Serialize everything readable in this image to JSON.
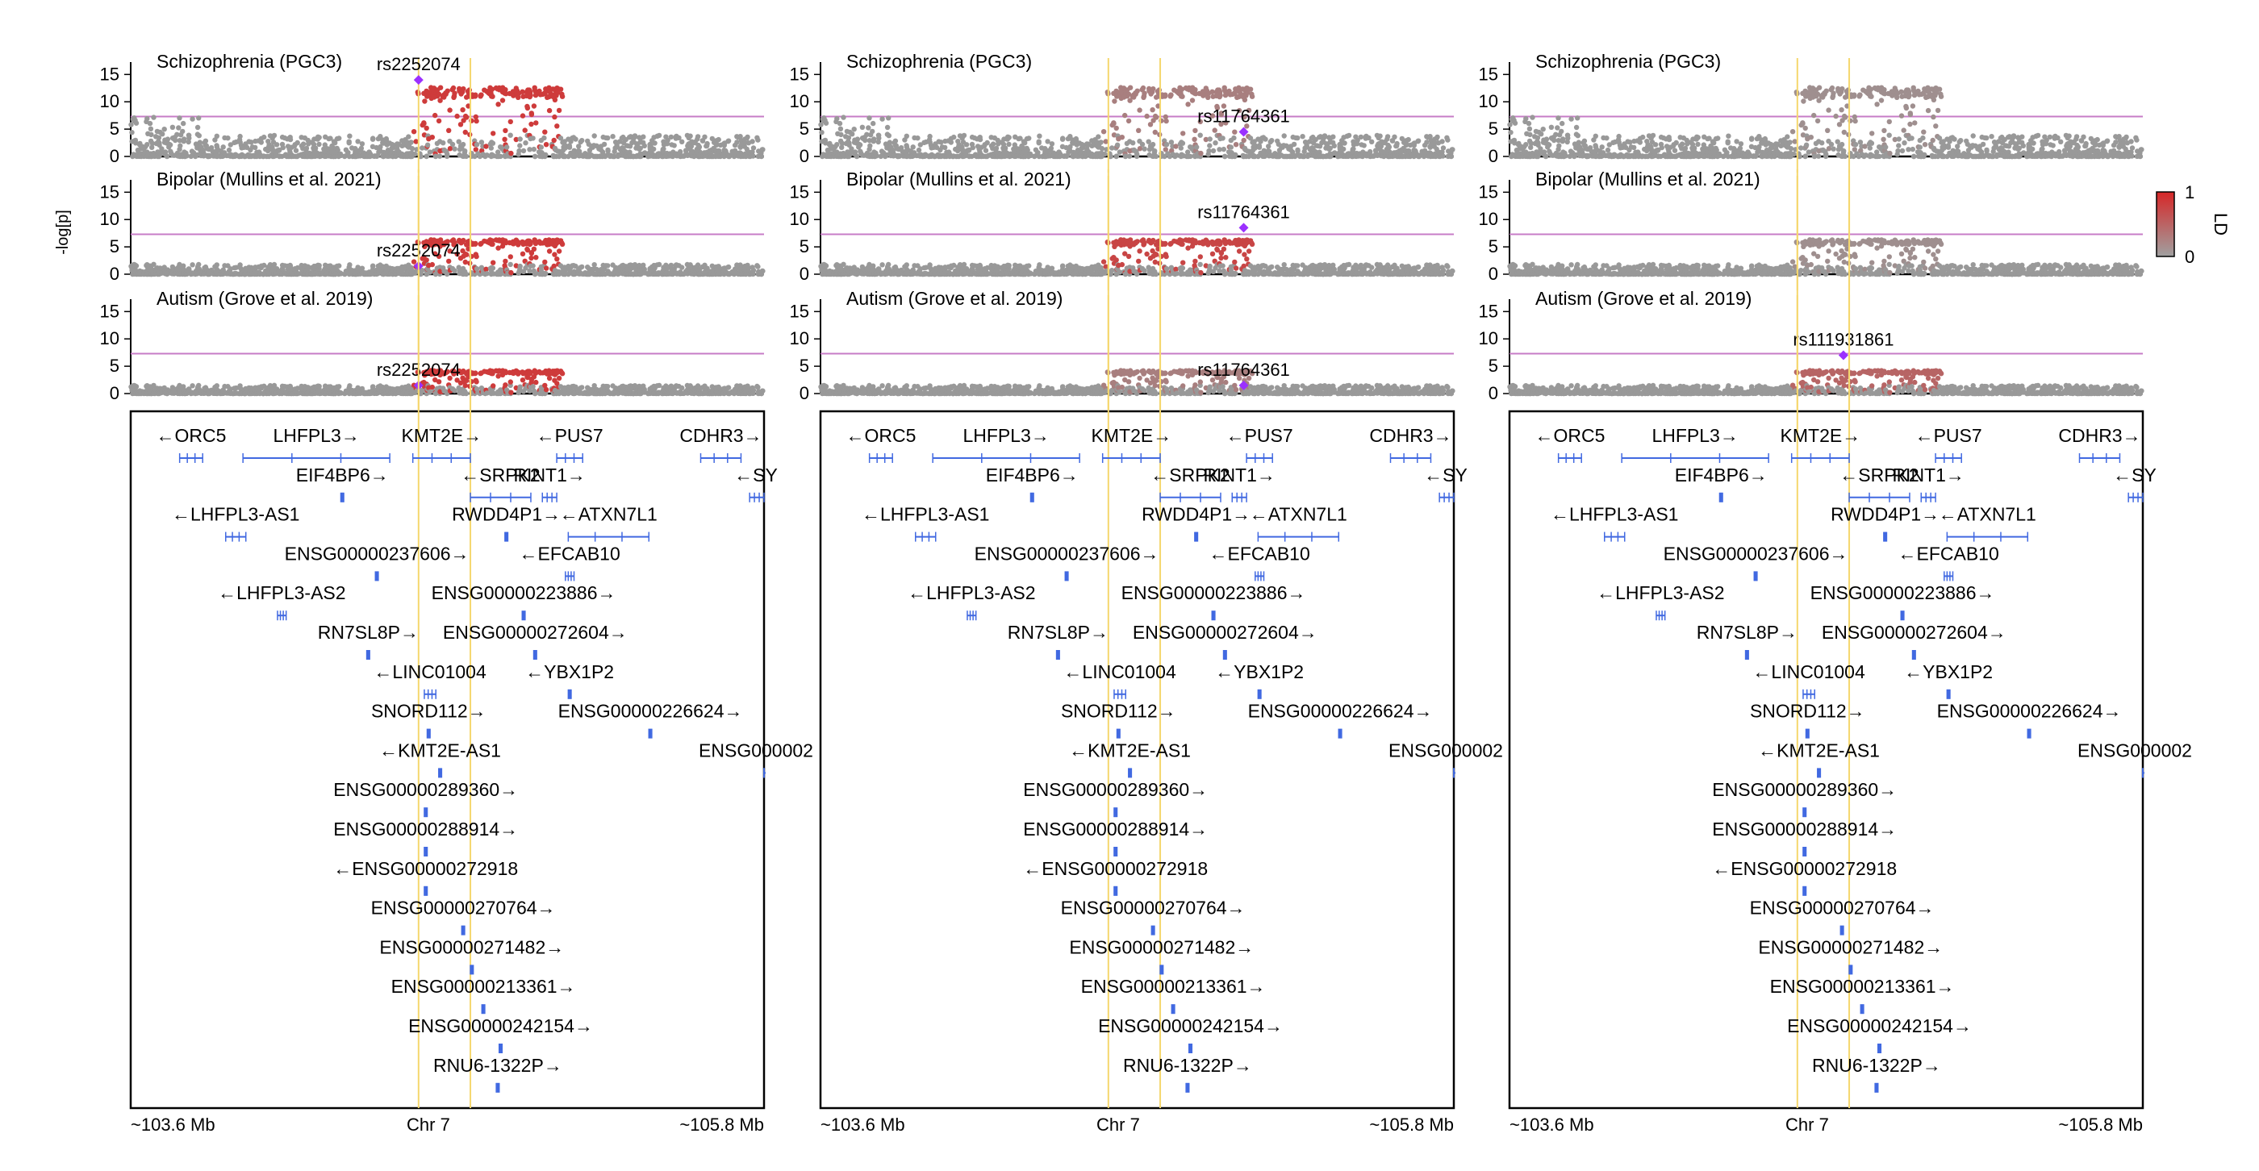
{
  "chart_data": {
    "type": "scatter",
    "title": "",
    "ylabel": "-log[p]",
    "ylim": [
      0,
      18
    ],
    "yticks": [
      0,
      5,
      10,
      15
    ],
    "significance_threshold": 7.3,
    "chromosome_label": "Chr 7",
    "x_start_label": "~103.6 Mb",
    "x_end_label": "~105.8 Mb",
    "xlim_mb": [
      103.6,
      105.8
    ],
    "highlight_region_mb": [
      104.6,
      104.78
    ],
    "colorbar": {
      "label": "LD",
      "min_label": "0",
      "max_label": "1",
      "min_color": "#a0a0a0",
      "max_color": "#d62728"
    },
    "colors": {
      "threshold": "#c77cc7",
      "highlight": "#f5d76e",
      "lead_snp": "#9b30ff",
      "gene": "#4169e1",
      "ld_low": "#999999",
      "ld_high": "#d43030"
    },
    "traits": [
      {
        "name": "Schizophrenia (PGC3)",
        "peak": 12,
        "bg_max": 6.5,
        "lead_mb": 104.6
      },
      {
        "name": "Bipolar (Mullins et al. 2021)",
        "peak": 6,
        "bg_max": 3,
        "lead_mb": 104.6
      },
      {
        "name": "Autism (Grove et al. 2019)",
        "peak": 4,
        "bg_max": 2.5,
        "lead_mb": 104.6
      }
    ],
    "columns": [
      {
        "lead_snp": "rs2252074",
        "lead_mb": 104.6,
        "lead_values": [
          14,
          1.5,
          1.5
        ],
        "label_row": [
          0,
          1,
          2
        ]
      },
      {
        "lead_snp": "rs11764361",
        "lead_mb": 105.07,
        "lead_values": [
          4.5,
          8.5,
          1.5
        ],
        "label_row": [
          0,
          1,
          2
        ]
      },
      {
        "lead_snp": "rs111931861",
        "lead_mb": 104.76,
        "lead_values": [
          null,
          null,
          7
        ],
        "label_row": [
          2
        ]
      }
    ],
    "genes": [
      {
        "name": "←ORC5",
        "row": 0,
        "start": 103.77,
        "end": 103.85
      },
      {
        "name": "LHFPL3→",
        "row": 0,
        "start": 103.99,
        "end": 104.5
      },
      {
        "name": "KMT2E→",
        "row": 0,
        "start": 104.58,
        "end": 104.78
      },
      {
        "name": "←PUS7",
        "row": 0,
        "start": 105.08,
        "end": 105.17
      },
      {
        "name": "CDHR3→",
        "row": 0,
        "start": 105.58,
        "end": 105.72
      },
      {
        "name": "EIF4BP6→",
        "row": 1,
        "start": 104.33,
        "end": 104.34
      },
      {
        "name": "←SRPK2",
        "row": 1,
        "start": 104.78,
        "end": 104.99
      },
      {
        "name": "RINT1→",
        "row": 1,
        "start": 105.03,
        "end": 105.08
      },
      {
        "name": "←SY",
        "row": 1,
        "start": 105.75,
        "end": 105.82
      },
      {
        "name": "←LHFPL3-AS1",
        "row": 2,
        "start": 103.93,
        "end": 104.0
      },
      {
        "name": "RWDD4P1→",
        "row": 2,
        "start": 104.9,
        "end": 104.91
      },
      {
        "name": "←ATXN7L1",
        "row": 2,
        "start": 105.12,
        "end": 105.4
      },
      {
        "name": "ENSG00000237606→",
        "row": 3,
        "start": 104.45,
        "end": 104.46
      },
      {
        "name": "←EFCAB10",
        "row": 3,
        "start": 105.11,
        "end": 105.14
      },
      {
        "name": "←LHFPL3-AS2",
        "row": 4,
        "start": 104.11,
        "end": 104.14
      },
      {
        "name": "ENSG00000223886→",
        "row": 4,
        "start": 104.96,
        "end": 104.97
      },
      {
        "name": "RN7SL8P→",
        "row": 5,
        "start": 104.42,
        "end": 104.43
      },
      {
        "name": "ENSG00000272604→",
        "row": 5,
        "start": 105.0,
        "end": 105.01
      },
      {
        "name": "←LINC01004",
        "row": 6,
        "start": 104.62,
        "end": 104.66
      },
      {
        "name": "←YBX1P2",
        "row": 6,
        "start": 105.12,
        "end": 105.13
      },
      {
        "name": "SNORD112→",
        "row": 7,
        "start": 104.63,
        "end": 104.64
      },
      {
        "name": "ENSG00000226624→",
        "row": 7,
        "start": 105.4,
        "end": 105.41
      },
      {
        "name": "←KMT2E-AS1",
        "row": 8,
        "start": 104.67,
        "end": 104.68
      },
      {
        "name": "ENSG000002",
        "row": 8,
        "start": 105.8,
        "end": 105.81
      },
      {
        "name": "ENSG00000289360→",
        "row": 9,
        "start": 104.62,
        "end": 104.63
      },
      {
        "name": "ENSG00000288914→",
        "row": 10,
        "start": 104.62,
        "end": 104.63
      },
      {
        "name": "←ENSG00000272918",
        "row": 11,
        "start": 104.62,
        "end": 104.63
      },
      {
        "name": "ENSG00000270764→",
        "row": 12,
        "start": 104.75,
        "end": 104.76
      },
      {
        "name": "ENSG00000271482→",
        "row": 13,
        "start": 104.78,
        "end": 104.79
      },
      {
        "name": "ENSG00000213361→",
        "row": 14,
        "start": 104.82,
        "end": 104.83
      },
      {
        "name": "ENSG00000242154→",
        "row": 15,
        "start": 104.88,
        "end": 104.89
      },
      {
        "name": "RNU6-1322P→",
        "row": 16,
        "start": 104.87,
        "end": 104.88
      }
    ]
  }
}
